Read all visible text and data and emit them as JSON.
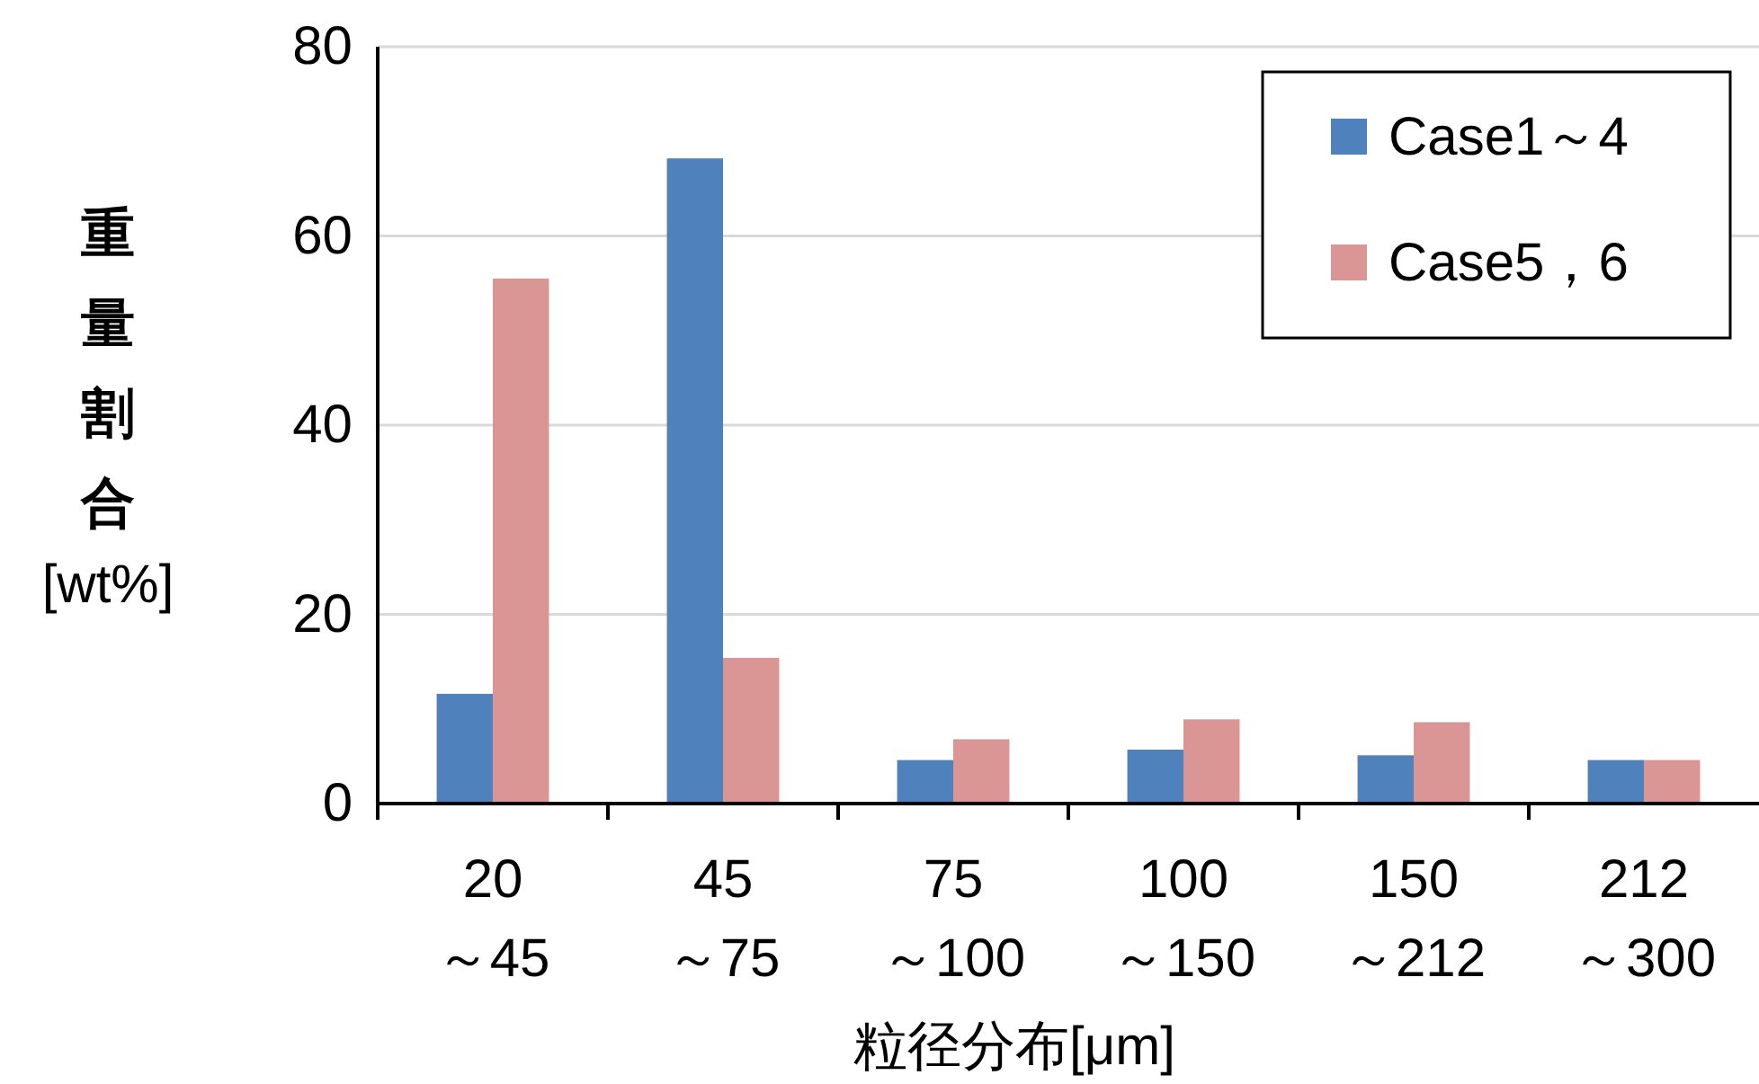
{
  "chart_data": {
    "type": "bar",
    "xlabel": "粒径分布[μm]",
    "ylabel": "重量割合[wt%]",
    "categories": [
      "20\n～45",
      "45\n～75",
      "75\n～100",
      "100\n～150",
      "150\n～212",
      "212\n～300"
    ],
    "series": [
      {
        "name": "Case1～4",
        "color": "#4f81bd",
        "values": [
          11.6,
          68.2,
          4.6,
          5.7,
          5.1,
          4.6
        ]
      },
      {
        "name": "Case5，6",
        "color": "#d99694",
        "values": [
          55.5,
          15.4,
          6.8,
          8.9,
          8.6,
          4.6
        ]
      }
    ],
    "ylim": [
      0,
      80
    ],
    "yticks": [
      0,
      20,
      40,
      60,
      80
    ],
    "grid": "y",
    "legend": "top right"
  }
}
